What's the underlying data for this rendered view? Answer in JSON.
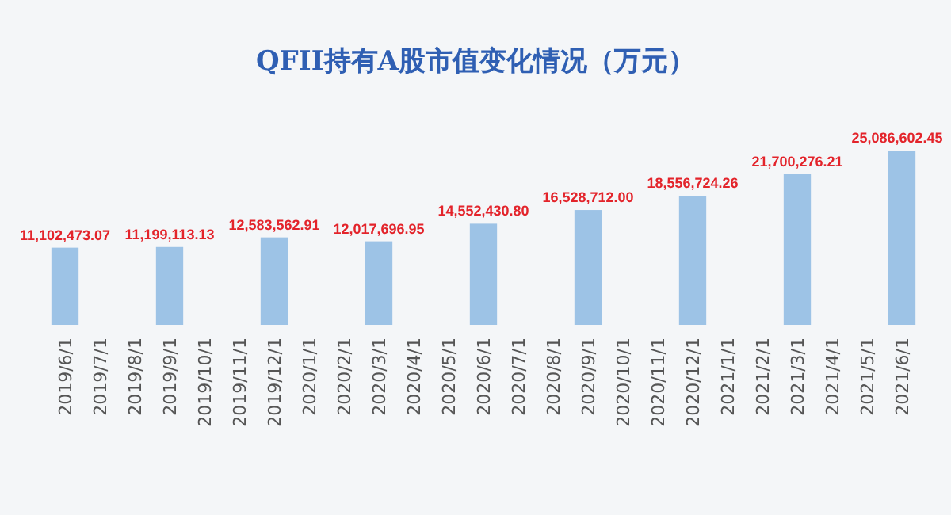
{
  "chart_data": {
    "type": "bar",
    "title": "QFII持有A股市值变化情况（万元）",
    "categories": [
      "2019/6/1",
      "2019/7/1",
      "2019/8/1",
      "2019/9/1",
      "2019/10/1",
      "2019/11/1",
      "2019/12/1",
      "2020/1/1",
      "2020/2/1",
      "2020/3/1",
      "2020/4/1",
      "2020/5/1",
      "2020/6/1",
      "2020/7/1",
      "2020/8/1",
      "2020/9/1",
      "2020/10/1",
      "2020/11/1",
      "2020/12/1",
      "2021/1/1",
      "2021/2/1",
      "2021/3/1",
      "2021/4/1",
      "2021/5/1",
      "2021/6/1"
    ],
    "values": [
      11102473.07,
      null,
      null,
      11199113.13,
      null,
      null,
      12583562.91,
      null,
      null,
      12017696.95,
      null,
      null,
      14552430.8,
      null,
      null,
      16528712.0,
      null,
      null,
      18556724.26,
      null,
      null,
      21700276.21,
      null,
      null,
      25086602.45
    ],
    "value_labels": [
      "11,102,473.07",
      null,
      null,
      "11,199,113.13",
      null,
      null,
      "12,583,562.91",
      null,
      null,
      "12,017,696.95",
      null,
      null,
      "14,552,430.80",
      null,
      null,
      "16,528,712.00",
      null,
      null,
      "18,556,724.26",
      null,
      null,
      "21,700,276.21",
      null,
      null,
      "25,086,602.45"
    ],
    "color": "#9dc3e6",
    "data_labels": true
  }
}
